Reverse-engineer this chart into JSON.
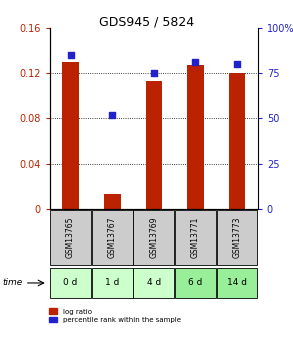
{
  "title": "GDS945 / 5824",
  "categories": [
    "GSM13765",
    "GSM13767",
    "GSM13769",
    "GSM13771",
    "GSM13773"
  ],
  "time_labels": [
    "0 d",
    "1 d",
    "4 d",
    "6 d",
    "14 d"
  ],
  "log_ratio": [
    0.13,
    0.013,
    0.113,
    0.127,
    0.12
  ],
  "percentile_rank": [
    85,
    52,
    75,
    81,
    80
  ],
  "bar_color": "#bb2200",
  "dot_color": "#2222cc",
  "left_ylim": [
    0,
    0.16
  ],
  "right_ylim": [
    0,
    100
  ],
  "left_yticks": [
    0,
    0.04,
    0.08,
    0.12,
    0.16
  ],
  "right_yticks": [
    0,
    25,
    50,
    75,
    100
  ],
  "left_ytick_labels": [
    "0",
    "0.04",
    "0.08",
    "0.12",
    "0.16"
  ],
  "right_ytick_labels": [
    "0",
    "25",
    "50",
    "75",
    "100%"
  ],
  "grid_values": [
    0.04,
    0.08,
    0.12
  ],
  "bar_width": 0.4,
  "cell_bg_gsm": "#cccccc",
  "cell_bg_time_light": "#ccffcc",
  "cell_bg_time_dark": "#99ee99",
  "legend_log_ratio": "log ratio",
  "legend_percentile": "percentile rank within the sample"
}
